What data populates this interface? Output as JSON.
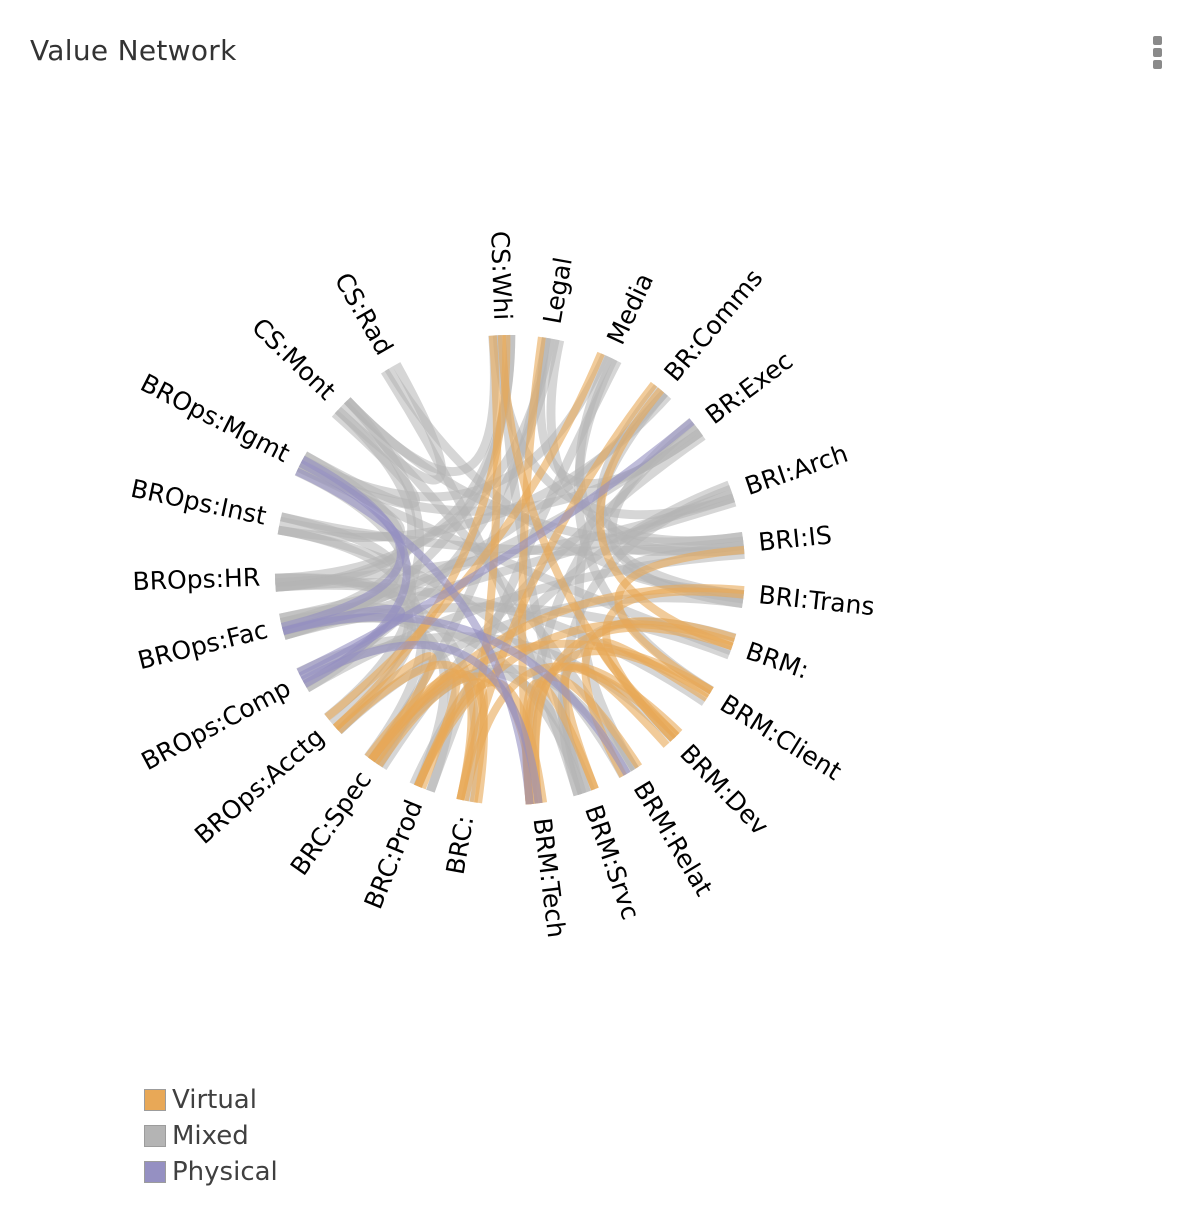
{
  "panel": {
    "title": "Value Network"
  },
  "chart_data": {
    "type": "chord",
    "title": "Value Network",
    "nodes": [
      "CS:Whi",
      "Legal",
      "Media",
      "BR:Comms",
      "BR:Exec",
      "BRI:Arch",
      "BRI:IS",
      "BRI:Trans",
      "BRM:",
      "BRM:Client",
      "BRM:Dev",
      "BRM:Relat",
      "BRM:Srvc",
      "BRM:Tech",
      "BRC:",
      "BRC:Prod",
      "BRC:Spec",
      "BROps:Acctg",
      "BROps:Comp",
      "BROps:Fac",
      "BROps:HR",
      "BROps:Inst",
      "BROps:Mgmt",
      "CS:Mont",
      "CS:Rad"
    ],
    "legend": [
      {
        "name": "Virtual",
        "color": "#e8a857"
      },
      {
        "name": "Mixed",
        "color": "#b4b4b4"
      },
      {
        "name": "Physical",
        "color": "#9590c2"
      }
    ],
    "links": [
      [
        "CS:Whi",
        "BRC:",
        "Virtual"
      ],
      [
        "CS:Whi",
        "BRM:Dev",
        "Virtual"
      ],
      [
        "CS:Whi",
        "BROps:Fac",
        "Mixed"
      ],
      [
        "CS:Whi",
        "BRI:Arch",
        "Mixed"
      ],
      [
        "CS:Whi",
        "BROps:Acctg",
        "Virtual"
      ],
      [
        "CS:Whi",
        "CS:Mont",
        "Mixed"
      ],
      [
        "CS:Whi",
        "BRM:Srvc",
        "Mixed"
      ],
      [
        "CS:Whi",
        "BROps:HR",
        "Mixed"
      ],
      [
        "Legal",
        "BRC:Spec",
        "Mixed"
      ],
      [
        "Legal",
        "BROps:Comp",
        "Mixed"
      ],
      [
        "Legal",
        "BRM:Tech",
        "Virtual"
      ],
      [
        "Legal",
        "BROps:HR",
        "Mixed"
      ],
      [
        "Legal",
        "BRI:IS",
        "Mixed"
      ],
      [
        "Legal",
        "BR:Exec",
        "Mixed"
      ],
      [
        "Media",
        "BRM:Client",
        "Mixed"
      ],
      [
        "Media",
        "BROps:Acctg",
        "Virtual"
      ],
      [
        "Media",
        "BRI:Trans",
        "Mixed"
      ],
      [
        "Media",
        "BRC:Prod",
        "Mixed"
      ],
      [
        "Media",
        "BROps:Mgmt",
        "Mixed"
      ],
      [
        "BR:Comms",
        "BROps:Fac",
        "Mixed"
      ],
      [
        "BR:Comms",
        "BRC:",
        "Virtual"
      ],
      [
        "BR:Comms",
        "BRM:",
        "Virtual"
      ],
      [
        "BR:Comms",
        "BROps:Inst",
        "Mixed"
      ],
      [
        "BR:Comms",
        "BRI:IS",
        "Mixed"
      ],
      [
        "BR:Comms",
        "BRM:Relat",
        "Mixed"
      ],
      [
        "BR:Exec",
        "BROps:Comp",
        "Physical"
      ],
      [
        "BR:Exec",
        "BROps:Fac",
        "Mixed"
      ],
      [
        "BR:Exec",
        "BRC:Spec",
        "Mixed"
      ],
      [
        "BR:Exec",
        "BRM:Tech",
        "Mixed"
      ],
      [
        "BR:Exec",
        "BROps:Mgmt",
        "Mixed"
      ],
      [
        "BR:Exec",
        "BRI:Trans",
        "Mixed"
      ],
      [
        "BRI:Arch",
        "BRI:IS",
        "Mixed"
      ],
      [
        "BRI:Arch",
        "BROps:Fac",
        "Mixed"
      ],
      [
        "BRI:Arch",
        "BRM:Srvc",
        "Mixed"
      ],
      [
        "BRI:Arch",
        "BROps:HR",
        "Mixed"
      ],
      [
        "BRI:Arch",
        "BRC:Prod",
        "Mixed"
      ],
      [
        "BRI:IS",
        "BRI:Trans",
        "Mixed"
      ],
      [
        "BRI:IS",
        "BROps:Comp",
        "Mixed"
      ],
      [
        "BRI:IS",
        "BROps:Inst",
        "Mixed"
      ],
      [
        "BRI:IS",
        "BRM:Client",
        "Virtual"
      ],
      [
        "BRI:IS",
        "CS:Mont",
        "Mixed"
      ],
      [
        "BRI:Trans",
        "BRM:Dev",
        "Virtual"
      ],
      [
        "BRI:Trans",
        "BROps:Acctg",
        "Mixed"
      ],
      [
        "BRI:Trans",
        "BRC:Spec",
        "Virtual"
      ],
      [
        "BRI:Trans",
        "CS:Rad",
        "Mixed"
      ],
      [
        "BRM:",
        "BRM:Relat",
        "Virtual"
      ],
      [
        "BRM:",
        "BRM:Tech",
        "Virtual"
      ],
      [
        "BRM:",
        "BROps:Fac",
        "Mixed"
      ],
      [
        "BRM:",
        "BRC:Prod",
        "Virtual"
      ],
      [
        "BRM:",
        "BROps:Mgmt",
        "Mixed"
      ],
      [
        "BRM:",
        "BRM:Srvc",
        "Mixed"
      ],
      [
        "BRM:Client",
        "BRM:Tech",
        "Virtual"
      ],
      [
        "BRM:Client",
        "BROps:HR",
        "Mixed"
      ],
      [
        "BRM:Client",
        "BRC:Spec",
        "Virtual"
      ],
      [
        "BRM:Client",
        "BRM:Dev",
        "Virtual"
      ],
      [
        "BRM:Dev",
        "BRM:Tech",
        "Virtual"
      ],
      [
        "BRM:Dev",
        "BROps:Comp",
        "Mixed"
      ],
      [
        "BRM:Dev",
        "BRM:Srvc",
        "Virtual"
      ],
      [
        "BRM:Dev",
        "BRC:",
        "Virtual"
      ],
      [
        "BRM:Relat",
        "BROps:Fac",
        "Physical"
      ],
      [
        "BRM:Relat",
        "BRM:Tech",
        "Virtual"
      ],
      [
        "BRM:Relat",
        "BRC:Spec",
        "Mixed"
      ],
      [
        "BRM:Relat",
        "BROps:Inst",
        "Mixed"
      ],
      [
        "BRM:Srvc",
        "BRC:Spec",
        "Mixed"
      ],
      [
        "BRM:Srvc",
        "BROps:Fac",
        "Mixed"
      ],
      [
        "BRM:Srvc",
        "BRM:Tech",
        "Virtual"
      ],
      [
        "BRM:Tech",
        "BROps:Comp",
        "Physical"
      ],
      [
        "BRM:Tech",
        "BROps:Mgmt",
        "Physical"
      ],
      [
        "BRM:Tech",
        "BRC:Prod",
        "Virtual"
      ],
      [
        "BRM:Tech",
        "BRC:Spec",
        "Virtual"
      ],
      [
        "BRC:",
        "BRC:Spec",
        "Virtual"
      ],
      [
        "BRC:",
        "BROps:HR",
        "Mixed"
      ],
      [
        "BRC:",
        "BROps:Acctg",
        "Virtual"
      ],
      [
        "BRC:",
        "BRC:Prod",
        "Virtual"
      ],
      [
        "BRC:Prod",
        "BROps:Fac",
        "Mixed"
      ],
      [
        "BRC:Prod",
        "BROps:Comp",
        "Mixed"
      ],
      [
        "BRC:Prod",
        "BRC:Spec",
        "Virtual"
      ],
      [
        "BRC:Spec",
        "BROps:Inst",
        "Mixed"
      ],
      [
        "BRC:Spec",
        "BROps:Fac",
        "Mixed"
      ],
      [
        "BRC:Spec",
        "BROps:Acctg",
        "Virtual"
      ],
      [
        "BROps:Acctg",
        "BROps:Fac",
        "Mixed"
      ],
      [
        "BROps:Acctg",
        "BROps:HR",
        "Mixed"
      ],
      [
        "BROps:Acctg",
        "BROps:Mgmt",
        "Mixed"
      ],
      [
        "BROps:Comp",
        "BROps:Mgmt",
        "Physical"
      ],
      [
        "BROps:Comp",
        "BROps:Fac",
        "Physical"
      ],
      [
        "BROps:Comp",
        "CS:Mont",
        "Mixed"
      ],
      [
        "BROps:Fac",
        "BROps:Mgmt",
        "Physical"
      ],
      [
        "BROps:Fac",
        "BROps:HR",
        "Mixed"
      ],
      [
        "BROps:Fac",
        "BROps:Inst",
        "Mixed"
      ],
      [
        "BROps:Fac",
        "CS:Mont",
        "Mixed"
      ],
      [
        "BROps:HR",
        "BROps:Mgmt",
        "Mixed"
      ],
      [
        "BROps:Inst",
        "BROps:Mgmt",
        "Mixed"
      ],
      [
        "BROps:Mgmt",
        "CS:Mont",
        "Mixed"
      ],
      [
        "CS:Mont",
        "CS:Rad",
        "Mixed"
      ],
      [
        "CS:Mont",
        "BRM:Relat",
        "Mixed"
      ],
      [
        "CS:Rad",
        "BRM:Srvc",
        "Mixed"
      ]
    ]
  }
}
